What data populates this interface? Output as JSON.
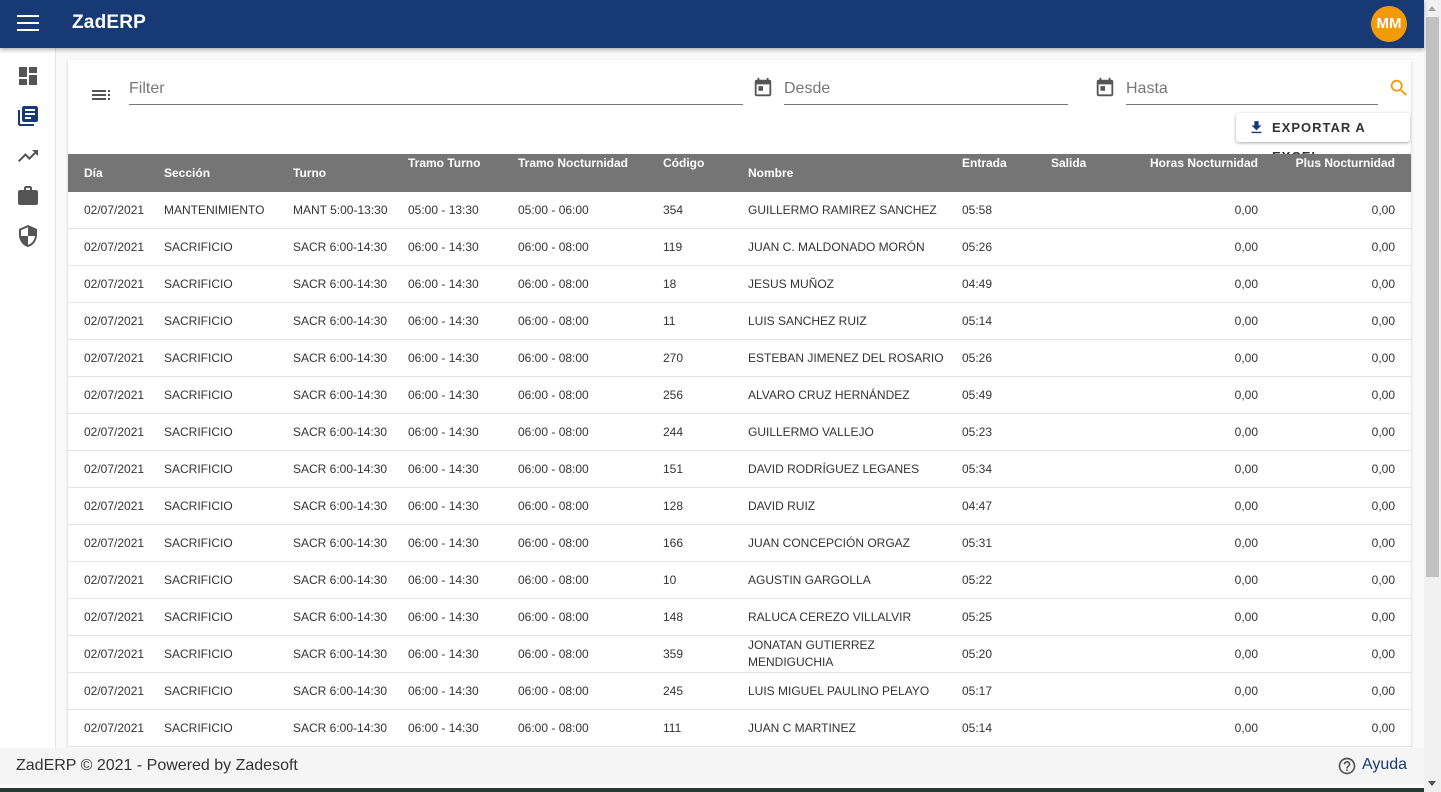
{
  "app": {
    "title": "ZadERP",
    "avatar_initials": "MM",
    "brand_color": "#173a74",
    "avatar_color": "#f39a0b"
  },
  "sidebar": {
    "items": [
      {
        "icon": "dashboard-icon"
      },
      {
        "icon": "library-books-icon",
        "active": true
      },
      {
        "icon": "trending-up-icon"
      },
      {
        "icon": "briefcase-icon"
      },
      {
        "icon": "security-shield-icon"
      }
    ]
  },
  "filters": {
    "filter_placeholder": "Filter",
    "desde_placeholder": "Desde",
    "hasta_placeholder": "Hasta",
    "filter_value": "",
    "desde_value": "",
    "hasta_value": ""
  },
  "toolbar": {
    "export_label": "EXPORTAR A EXCEL"
  },
  "table": {
    "columns": [
      "Día",
      "Sección",
      "Turno",
      "Tramo Turno",
      "Tramo Nocturnidad",
      "Código",
      "Nombre",
      "Entrada",
      "Salida",
      "Horas Nocturnidad",
      "Plus Nocturnidad"
    ],
    "rows": [
      [
        "02/07/2021",
        "MANTENIMIENTO",
        "MANT 5:00-13:30",
        "05:00 - 13:30",
        "05:00 - 06:00",
        "354",
        "GUILLERMO RAMIREZ SANCHEZ",
        "05:58",
        "",
        "0,00",
        "0,00"
      ],
      [
        "02/07/2021",
        "SACRIFICIO",
        "SACR 6:00-14:30",
        "06:00 - 14:30",
        "06:00 - 08:00",
        "119",
        "JUAN C. MALDONADO MORÓN",
        "05:26",
        "",
        "0,00",
        "0,00"
      ],
      [
        "02/07/2021",
        "SACRIFICIO",
        "SACR 6:00-14:30",
        "06:00 - 14:30",
        "06:00 - 08:00",
        "18",
        "JESUS MUÑOZ",
        "04:49",
        "",
        "0,00",
        "0,00"
      ],
      [
        "02/07/2021",
        "SACRIFICIO",
        "SACR 6:00-14:30",
        "06:00 - 14:30",
        "06:00 - 08:00",
        "11",
        "LUIS SANCHEZ RUIZ",
        "05:14",
        "",
        "0,00",
        "0,00"
      ],
      [
        "02/07/2021",
        "SACRIFICIO",
        "SACR 6:00-14:30",
        "06:00 - 14:30",
        "06:00 - 08:00",
        "270",
        "ESTEBAN JIMENEZ DEL ROSARIO",
        "05:26",
        "",
        "0,00",
        "0,00"
      ],
      [
        "02/07/2021",
        "SACRIFICIO",
        "SACR 6:00-14:30",
        "06:00 - 14:30",
        "06:00 - 08:00",
        "256",
        "ALVARO CRUZ HERNÁNDEZ",
        "05:49",
        "",
        "0,00",
        "0,00"
      ],
      [
        "02/07/2021",
        "SACRIFICIO",
        "SACR 6:00-14:30",
        "06:00 - 14:30",
        "06:00 - 08:00",
        "244",
        "GUILLERMO VALLEJO",
        "05:23",
        "",
        "0,00",
        "0,00"
      ],
      [
        "02/07/2021",
        "SACRIFICIO",
        "SACR 6:00-14:30",
        "06:00 - 14:30",
        "06:00 - 08:00",
        "151",
        "DAVID RODRÍGUEZ LEGANES",
        "05:34",
        "",
        "0,00",
        "0,00"
      ],
      [
        "02/07/2021",
        "SACRIFICIO",
        "SACR 6:00-14:30",
        "06:00 - 14:30",
        "06:00 - 08:00",
        "128",
        "DAVID RUIZ",
        "04:47",
        "",
        "0,00",
        "0,00"
      ],
      [
        "02/07/2021",
        "SACRIFICIO",
        "SACR 6:00-14:30",
        "06:00 - 14:30",
        "06:00 - 08:00",
        "166",
        "JUAN CONCEPCIÓN ORGAZ",
        "05:31",
        "",
        "0,00",
        "0,00"
      ],
      [
        "02/07/2021",
        "SACRIFICIO",
        "SACR 6:00-14:30",
        "06:00 - 14:30",
        "06:00 - 08:00",
        "10",
        "AGUSTIN GARGOLLA",
        "05:22",
        "",
        "0,00",
        "0,00"
      ],
      [
        "02/07/2021",
        "SACRIFICIO",
        "SACR 6:00-14:30",
        "06:00 - 14:30",
        "06:00 - 08:00",
        "148",
        "RALUCA CEREZO VILLALVIR",
        "05:25",
        "",
        "0,00",
        "0,00"
      ],
      [
        "02/07/2021",
        "SACRIFICIO",
        "SACR 6:00-14:30",
        "06:00 - 14:30",
        "06:00 - 08:00",
        "359",
        "JONATAN GUTIERREZ MENDIGUCHIA",
        "05:20",
        "",
        "0,00",
        "0,00"
      ],
      [
        "02/07/2021",
        "SACRIFICIO",
        "SACR 6:00-14:30",
        "06:00 - 14:30",
        "06:00 - 08:00",
        "245",
        "LUIS MIGUEL PAULINO PELAYO",
        "05:17",
        "",
        "0,00",
        "0,00"
      ],
      [
        "02/07/2021",
        "SACRIFICIO",
        "SACR 6:00-14:30",
        "06:00 - 14:30",
        "06:00 - 08:00",
        "111",
        "JUAN C MARTINEZ",
        "05:14",
        "",
        "0,00",
        "0,00"
      ]
    ]
  },
  "footer": {
    "text": "ZadERP © 2021 - Powered by Zadesoft",
    "help_label": "Ayuda"
  }
}
